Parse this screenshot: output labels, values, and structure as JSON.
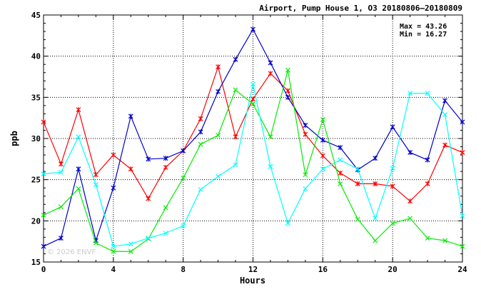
{
  "chart_data": {
    "type": "line",
    "title": "Airport, Pump House 1, O3 20180806–20180809",
    "xlabel": "Hours",
    "ylabel": "ppb",
    "xlim": [
      0,
      24
    ],
    "ylim": [
      15,
      45
    ],
    "xticks": [
      0,
      4,
      8,
      12,
      16,
      20,
      24
    ],
    "yticks": [
      15,
      20,
      25,
      30,
      35,
      40,
      45
    ],
    "grid": true,
    "stats": {
      "max_label": "Max = 43.26",
      "min_label": "Min = 16.27"
    },
    "watermark": "© 2026 ENVF",
    "x": [
      0,
      1,
      2,
      3,
      4,
      5,
      6,
      7,
      8,
      9,
      10,
      11,
      12,
      13,
      14,
      15,
      16,
      17,
      18,
      19,
      20,
      21,
      22,
      23,
      24
    ],
    "series": [
      {
        "color": "#ff0000",
        "marker": "asterisk",
        "values": [
          32.0,
          26.9,
          33.5,
          25.6,
          28.0,
          26.3,
          22.7,
          26.5,
          28.5,
          32.4,
          38.7,
          30.2,
          34.8,
          37.9,
          35.8,
          30.5,
          27.9,
          25.8,
          24.5,
          24.5,
          24.2,
          22.4,
          24.5,
          29.2,
          28.3
        ]
      },
      {
        "color": "#0000cc",
        "marker": "asterisk",
        "values": [
          16.9,
          17.9,
          26.3,
          17.6,
          24.0,
          32.7,
          27.5,
          27.6,
          28.5,
          30.8,
          35.7,
          39.6,
          43.26,
          39.2,
          35.0,
          31.6,
          29.8,
          28.9,
          26.2,
          27.6,
          31.4,
          28.3,
          27.4,
          34.6,
          32.0
        ]
      },
      {
        "color": "#00ee00",
        "marker": "cross",
        "values": [
          20.7,
          21.7,
          23.9,
          17.3,
          16.3,
          16.27,
          17.8,
          21.6,
          25.2,
          29.3,
          30.4,
          35.9,
          34.2,
          30.2,
          38.3,
          25.6,
          32.3,
          24.5,
          20.2,
          17.6,
          19.7,
          20.3,
          17.9,
          17.6,
          16.9
        ]
      },
      {
        "color": "#00ffff",
        "marker": "cross",
        "values": [
          25.7,
          25.9,
          30.2,
          24.4,
          16.9,
          17.2,
          17.9,
          18.5,
          19.4,
          23.8,
          25.4,
          26.8,
          36.6,
          26.6,
          19.7,
          23.9,
          26.3,
          27.4,
          26.3,
          20.3,
          26.4,
          35.5,
          35.5,
          32.9,
          20.6
        ]
      }
    ]
  }
}
